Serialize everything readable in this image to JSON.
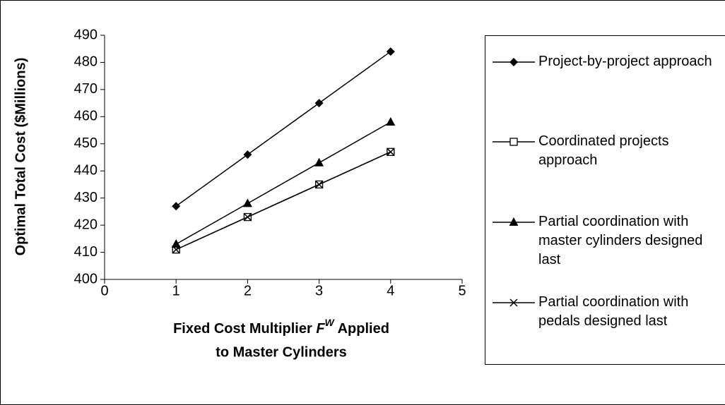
{
  "chart_data": {
    "type": "line",
    "y_label": "Optimal Total Cost ($Millions)",
    "x_label": [
      "Fixed Cost Multiplier",
      "F",
      "W",
      "Applied",
      "to Master Cylinders"
    ],
    "x": [
      1,
      2,
      3,
      4
    ],
    "xlim": [
      0,
      5
    ],
    "xticks": [
      0,
      1,
      2,
      3,
      4,
      5
    ],
    "ylim": [
      400,
      490
    ],
    "yticks": [
      400,
      410,
      420,
      430,
      440,
      450,
      460,
      470,
      480,
      490
    ],
    "grid": false,
    "legend": "right",
    "series": [
      {
        "name": "Project-by-project approach",
        "color": "#000000",
        "marker": "diamond",
        "values": [
          427,
          446,
          465,
          484
        ]
      },
      {
        "name": "Coordinated projects approach",
        "color": "#000000",
        "marker": "square",
        "values": [
          411,
          423,
          435,
          447
        ]
      },
      {
        "name": "Partial coordination with master cylinders designed last",
        "color": "#000000",
        "marker": "triangle",
        "values": [
          413,
          428,
          443,
          458
        ]
      },
      {
        "name": "Partial coordination with pedals designed last",
        "color": "#000000",
        "marker": "x",
        "values": [
          411,
          423,
          435,
          447
        ]
      }
    ]
  }
}
